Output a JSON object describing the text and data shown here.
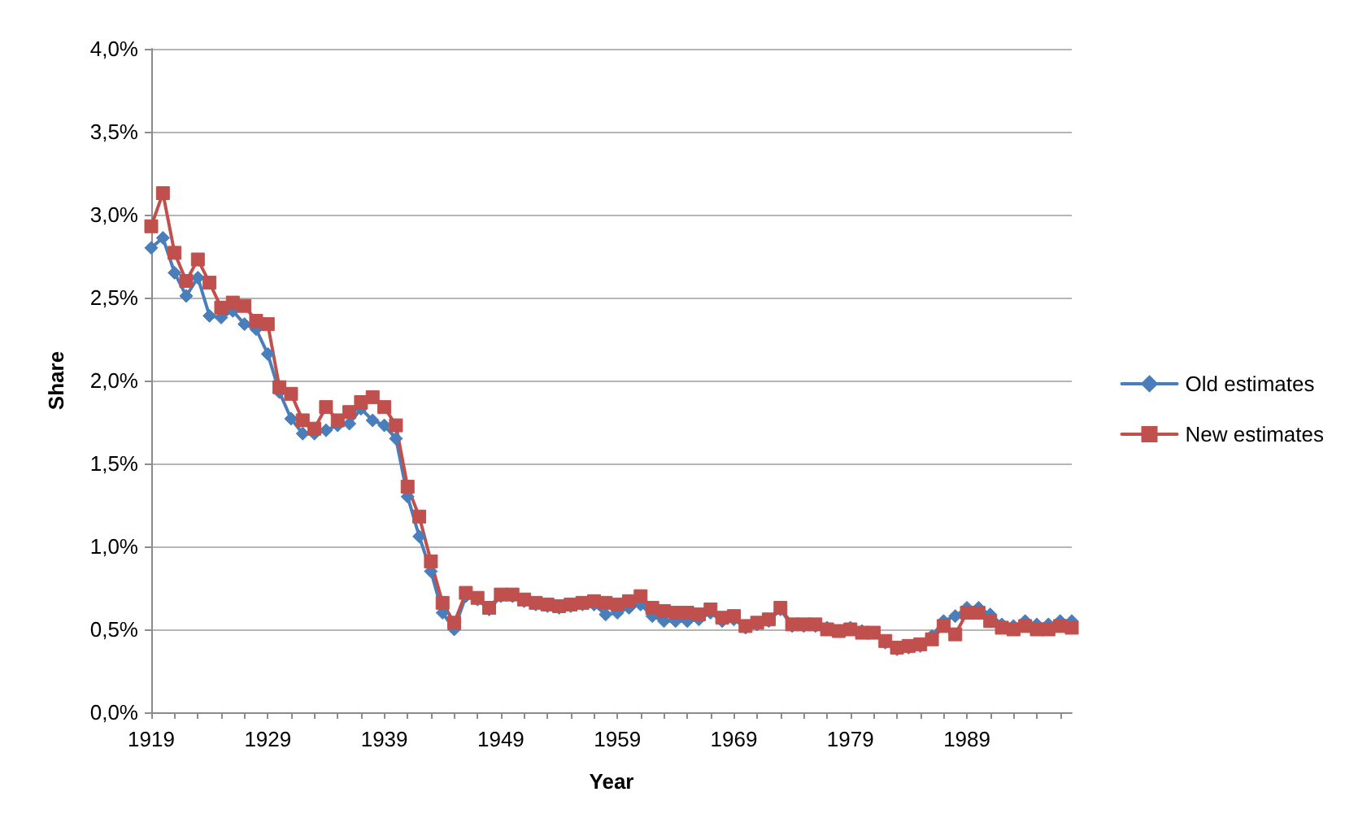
{
  "chart_data": {
    "type": "line",
    "xlabel": "Year",
    "ylabel": "Share",
    "x": [
      1919,
      1920,
      1921,
      1922,
      1923,
      1924,
      1925,
      1926,
      1927,
      1928,
      1929,
      1930,
      1931,
      1932,
      1933,
      1934,
      1935,
      1936,
      1937,
      1938,
      1939,
      1940,
      1941,
      1942,
      1943,
      1944,
      1945,
      1946,
      1947,
      1948,
      1949,
      1950,
      1951,
      1952,
      1953,
      1954,
      1955,
      1956,
      1957,
      1958,
      1959,
      1960,
      1961,
      1962,
      1963,
      1964,
      1965,
      1966,
      1967,
      1968,
      1969,
      1970,
      1971,
      1972,
      1973,
      1974,
      1975,
      1976,
      1977,
      1978,
      1979,
      1980,
      1981,
      1982,
      1983,
      1984,
      1985,
      1986,
      1987,
      1988,
      1989,
      1990,
      1991,
      1992,
      1993,
      1994,
      1995,
      1996,
      1997,
      1998
    ],
    "series": [
      {
        "name": "Old estimates",
        "color": "#4a7ebb",
        "marker": "diamond",
        "values": [
          2.8,
          2.86,
          2.65,
          2.51,
          2.62,
          2.39,
          2.38,
          2.42,
          2.34,
          2.31,
          2.16,
          1.93,
          1.77,
          1.68,
          1.68,
          1.7,
          1.73,
          1.74,
          1.83,
          1.76,
          1.73,
          1.65,
          1.3,
          1.06,
          0.85,
          0.6,
          0.5,
          0.7,
          0.68,
          0.62,
          0.7,
          0.7,
          0.67,
          0.65,
          0.64,
          0.63,
          0.64,
          0.65,
          0.65,
          0.59,
          0.6,
          0.63,
          0.65,
          0.58,
          0.55,
          0.55,
          0.55,
          0.56,
          0.6,
          0.55,
          0.56,
          0.51,
          0.53,
          0.55,
          0.62,
          0.52,
          0.52,
          0.52,
          0.51,
          0.49,
          0.51,
          0.49,
          0.48,
          0.42,
          0.38,
          0.39,
          0.4,
          0.46,
          0.55,
          0.58,
          0.63,
          0.63,
          0.59,
          0.53,
          0.52,
          0.55,
          0.53,
          0.53,
          0.55,
          0.55
        ]
      },
      {
        "name": "New estimates",
        "color": "#c0504d",
        "marker": "square",
        "values": [
          2.93,
          3.13,
          2.77,
          2.6,
          2.73,
          2.59,
          2.44,
          2.47,
          2.45,
          2.36,
          2.34,
          1.96,
          1.92,
          1.76,
          1.71,
          1.84,
          1.76,
          1.81,
          1.87,
          1.9,
          1.84,
          1.73,
          1.36,
          1.18,
          0.91,
          0.66,
          0.54,
          0.72,
          0.69,
          0.63,
          0.71,
          0.71,
          0.68,
          0.66,
          0.65,
          0.64,
          0.65,
          0.66,
          0.67,
          0.66,
          0.65,
          0.67,
          0.7,
          0.63,
          0.61,
          0.6,
          0.6,
          0.59,
          0.62,
          0.57,
          0.58,
          0.52,
          0.54,
          0.56,
          0.63,
          0.53,
          0.53,
          0.53,
          0.5,
          0.49,
          0.5,
          0.48,
          0.48,
          0.43,
          0.39,
          0.4,
          0.41,
          0.44,
          0.52,
          0.47,
          0.6,
          0.6,
          0.55,
          0.51,
          0.5,
          0.52,
          0.5,
          0.5,
          0.52,
          0.51
        ]
      }
    ],
    "xlim": [
      1919,
      1998
    ],
    "xticks": [
      1919,
      {
        "value": 1921,
        "label": null
      },
      {
        "value": 1923,
        "label": null
      },
      {
        "value": 1925,
        "label": null
      },
      {
        "value": 1927,
        "label": null
      },
      1929,
      {
        "value": 1931,
        "label": null
      },
      {
        "value": 1933,
        "label": null
      },
      {
        "value": 1935,
        "label": null
      },
      {
        "value": 1937,
        "label": null
      },
      1939,
      {
        "value": 1941,
        "label": null
      },
      {
        "value": 1943,
        "label": null
      },
      {
        "value": 1945,
        "label": null
      },
      {
        "value": 1947,
        "label": null
      },
      1949,
      {
        "value": 1951,
        "label": null
      },
      {
        "value": 1953,
        "label": null
      },
      {
        "value": 1955,
        "label": null
      },
      {
        "value": 1957,
        "label": null
      },
      1959,
      {
        "value": 1961,
        "label": null
      },
      {
        "value": 1963,
        "label": null
      },
      {
        "value": 1965,
        "label": null
      },
      {
        "value": 1967,
        "label": null
      },
      1969,
      {
        "value": 1971,
        "label": null
      },
      {
        "value": 1973,
        "label": null
      },
      {
        "value": 1975,
        "label": null
      },
      {
        "value": 1977,
        "label": null
      },
      1979,
      {
        "value": 1981,
        "label": null
      },
      {
        "value": 1983,
        "label": null
      },
      {
        "value": 1985,
        "label": null
      },
      {
        "value": 1987,
        "label": null
      },
      1989,
      {
        "value": 1991,
        "label": null
      },
      {
        "value": 1993,
        "label": null
      },
      {
        "value": 1995,
        "label": null
      },
      {
        "value": 1997,
        "label": null
      }
    ],
    "ylim": [
      0,
      4
    ],
    "yticks": [
      {
        "value": 0,
        "label": "0,0%"
      },
      {
        "value": 0.5,
        "label": "0,5%"
      },
      {
        "value": 1,
        "label": "1,0%"
      },
      {
        "value": 1.5,
        "label": "1,5%"
      },
      {
        "value": 2,
        "label": "2,0%"
      },
      {
        "value": 2.5,
        "label": "2,5%"
      },
      {
        "value": 3,
        "label": "3,0%"
      },
      {
        "value": 3.5,
        "label": "3,5%"
      },
      {
        "value": 4,
        "label": "4,0%"
      }
    ],
    "grid": "y",
    "legend": "right",
    "line_style": "solid"
  }
}
